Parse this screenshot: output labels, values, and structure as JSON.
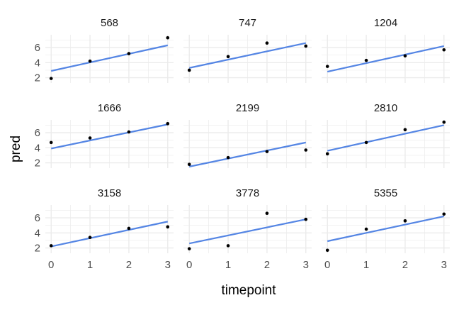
{
  "chart_data": {
    "type": "scatter",
    "xlabel": "timepoint",
    "ylabel": "pred",
    "x_ticks": [
      0,
      1,
      2,
      3
    ],
    "y_ticks": [
      2,
      4,
      6
    ],
    "xlim": [
      -0.15,
      3.15
    ],
    "ylim": [
      1.3,
      7.7
    ],
    "grid": true,
    "colors": {
      "line": "#5485E4",
      "point": "#000000",
      "grid": "#EBEBEB"
    },
    "panels": [
      {
        "id": "568",
        "x": [
          0,
          1,
          2,
          3
        ],
        "y": [
          1.9,
          4.2,
          5.2,
          7.3
        ],
        "fit": [
          2.9,
          6.3
        ]
      },
      {
        "id": "747",
        "x": [
          0,
          1,
          2,
          3
        ],
        "y": [
          3.0,
          4.8,
          6.6,
          6.2
        ],
        "fit": [
          3.3,
          6.6
        ]
      },
      {
        "id": "1204",
        "x": [
          0,
          1,
          2,
          3
        ],
        "y": [
          3.5,
          4.3,
          4.9,
          5.7
        ],
        "fit": [
          2.8,
          6.2
        ]
      },
      {
        "id": "1666",
        "x": [
          0,
          1,
          2,
          3
        ],
        "y": [
          4.7,
          5.3,
          6.1,
          7.2
        ],
        "fit": [
          3.9,
          7.1
        ]
      },
      {
        "id": "2199",
        "x": [
          0,
          1,
          2,
          3
        ],
        "y": [
          1.8,
          2.7,
          3.5,
          3.7
        ],
        "fit": [
          1.5,
          4.7
        ]
      },
      {
        "id": "2810",
        "x": [
          0,
          1,
          2,
          3
        ],
        "y": [
          3.2,
          4.7,
          6.4,
          7.4
        ],
        "fit": [
          3.6,
          7.0
        ]
      },
      {
        "id": "3158",
        "x": [
          0,
          1,
          2,
          3
        ],
        "y": [
          2.3,
          3.4,
          4.6,
          4.8
        ],
        "fit": [
          2.2,
          5.5
        ]
      },
      {
        "id": "3778",
        "x": [
          0,
          1,
          2,
          3
        ],
        "y": [
          1.9,
          2.3,
          6.6,
          5.8
        ],
        "fit": [
          2.6,
          5.8
        ]
      },
      {
        "id": "5355",
        "x": [
          0,
          1,
          2,
          3
        ],
        "y": [
          1.7,
          4.5,
          5.6,
          6.5
        ],
        "fit": [
          2.9,
          6.2
        ]
      }
    ]
  }
}
